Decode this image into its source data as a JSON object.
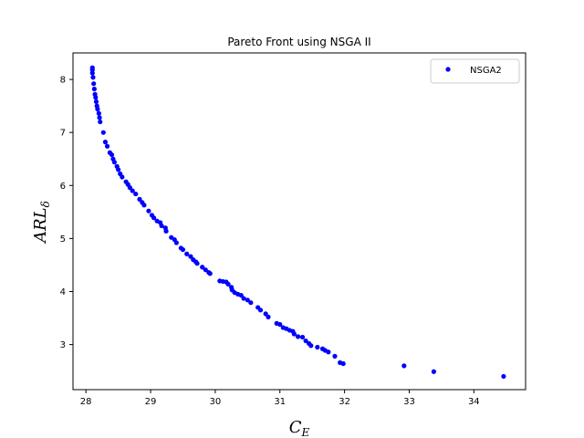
{
  "chart_data": {
    "type": "scatter",
    "title": "Pareto Front using NSGA II",
    "xlabel": "C",
    "xlabel_sub": "E",
    "ylabel": "ARL",
    "ylabel_sub": "δ",
    "xlim": [
      27.8,
      34.8
    ],
    "ylim": [
      2.15,
      8.5
    ],
    "xticks": [
      28,
      29,
      30,
      31,
      32,
      33,
      34
    ],
    "yticks": [
      3,
      4,
      5,
      6,
      7,
      8
    ],
    "grid": false,
    "legend_position": "top-right",
    "series": [
      {
        "name": "NSGA2",
        "color": "#0000ff",
        "marker": "circle",
        "points": [
          [
            28.1,
            8.22
          ],
          [
            28.1,
            8.18
          ],
          [
            28.1,
            8.12
          ],
          [
            28.11,
            8.04
          ],
          [
            28.12,
            7.92
          ],
          [
            28.13,
            7.82
          ],
          [
            28.14,
            7.72
          ],
          [
            28.15,
            7.66
          ],
          [
            28.16,
            7.58
          ],
          [
            28.17,
            7.5
          ],
          [
            28.18,
            7.44
          ],
          [
            28.2,
            7.36
          ],
          [
            28.21,
            7.28
          ],
          [
            28.22,
            7.2
          ],
          [
            28.27,
            7.0
          ],
          [
            28.3,
            6.82
          ],
          [
            28.33,
            6.74
          ],
          [
            28.37,
            6.62
          ],
          [
            28.4,
            6.58
          ],
          [
            28.42,
            6.5
          ],
          [
            28.44,
            6.44
          ],
          [
            28.48,
            6.36
          ],
          [
            28.5,
            6.3
          ],
          [
            28.53,
            6.22
          ],
          [
            28.56,
            6.16
          ],
          [
            28.62,
            6.07
          ],
          [
            28.65,
            6.02
          ],
          [
            28.68,
            5.96
          ],
          [
            28.72,
            5.9
          ],
          [
            28.77,
            5.84
          ],
          [
            28.83,
            5.74
          ],
          [
            28.87,
            5.68
          ],
          [
            28.9,
            5.63
          ],
          [
            28.97,
            5.52
          ],
          [
            29.02,
            5.44
          ],
          [
            29.05,
            5.39
          ],
          [
            29.1,
            5.33
          ],
          [
            29.15,
            5.3
          ],
          [
            29.17,
            5.24
          ],
          [
            29.23,
            5.2
          ],
          [
            29.24,
            5.14
          ],
          [
            29.32,
            5.02
          ],
          [
            29.37,
            4.98
          ],
          [
            29.4,
            4.92
          ],
          [
            29.47,
            4.82
          ],
          [
            29.5,
            4.79
          ],
          [
            29.56,
            4.71
          ],
          [
            29.62,
            4.66
          ],
          [
            29.66,
            4.6
          ],
          [
            29.7,
            4.56
          ],
          [
            29.72,
            4.53
          ],
          [
            29.8,
            4.46
          ],
          [
            29.85,
            4.41
          ],
          [
            29.9,
            4.36
          ],
          [
            29.92,
            4.34
          ],
          [
            30.07,
            4.2
          ],
          [
            30.12,
            4.19
          ],
          [
            30.17,
            4.18
          ],
          [
            30.2,
            4.14
          ],
          [
            30.25,
            4.08
          ],
          [
            30.26,
            4.03
          ],
          [
            30.3,
            3.98
          ],
          [
            30.35,
            3.95
          ],
          [
            30.4,
            3.93
          ],
          [
            30.44,
            3.87
          ],
          [
            30.5,
            3.84
          ],
          [
            30.55,
            3.79
          ],
          [
            30.66,
            3.7
          ],
          [
            30.7,
            3.65
          ],
          [
            30.78,
            3.58
          ],
          [
            30.82,
            3.52
          ],
          [
            30.95,
            3.4
          ],
          [
            31.0,
            3.38
          ],
          [
            31.05,
            3.32
          ],
          [
            31.1,
            3.3
          ],
          [
            31.15,
            3.27
          ],
          [
            31.2,
            3.25
          ],
          [
            31.22,
            3.2
          ],
          [
            31.28,
            3.15
          ],
          [
            31.35,
            3.14
          ],
          [
            31.4,
            3.07
          ],
          [
            31.45,
            3.02
          ],
          [
            31.48,
            2.98
          ],
          [
            31.58,
            2.95
          ],
          [
            31.66,
            2.92
          ],
          [
            31.7,
            2.89
          ],
          [
            31.75,
            2.86
          ],
          [
            31.85,
            2.78
          ],
          [
            31.93,
            2.66
          ],
          [
            31.98,
            2.64
          ],
          [
            32.92,
            2.6
          ],
          [
            33.38,
            2.49
          ],
          [
            34.46,
            2.4
          ]
        ]
      }
    ]
  }
}
